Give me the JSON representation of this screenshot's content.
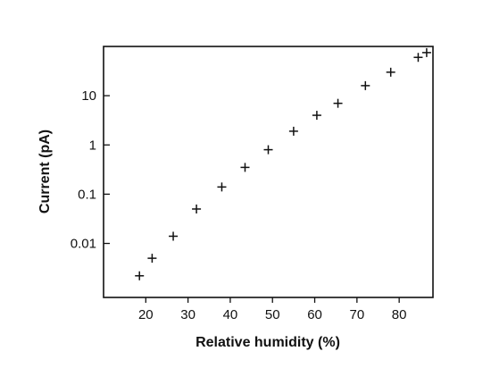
{
  "chart_data": {
    "type": "scatter",
    "title": "",
    "xlabel": "Relative humidity (%)",
    "ylabel": "Current (pA)",
    "xscale": "linear",
    "yscale": "log",
    "xlim": [
      10,
      88
    ],
    "ylim": [
      0.0008,
      100
    ],
    "grid": false,
    "legend": "none",
    "x_ticks": [
      20,
      30,
      40,
      50,
      60,
      70,
      80
    ],
    "y_ticks": [
      0.01,
      0.1,
      1,
      10
    ],
    "x_tick_labels": [
      "20",
      "30",
      "40",
      "50",
      "60",
      "70",
      "80"
    ],
    "y_tick_labels": [
      "0.01",
      "0.1",
      "1",
      "10"
    ],
    "marker": "plus",
    "color": "#111111",
    "points": [
      {
        "x": 18.5,
        "y": 0.0022
      },
      {
        "x": 21.5,
        "y": 0.005
      },
      {
        "x": 26.5,
        "y": 0.014
      },
      {
        "x": 32,
        "y": 0.05
      },
      {
        "x": 38,
        "y": 0.14
      },
      {
        "x": 43.5,
        "y": 0.35
      },
      {
        "x": 49,
        "y": 0.8
      },
      {
        "x": 55,
        "y": 1.9
      },
      {
        "x": 60.5,
        "y": 4
      },
      {
        "x": 65.5,
        "y": 7
      },
      {
        "x": 72,
        "y": 16
      },
      {
        "x": 78,
        "y": 30
      },
      {
        "x": 84.5,
        "y": 60
      },
      {
        "x": 86.5,
        "y": 75
      }
    ]
  }
}
